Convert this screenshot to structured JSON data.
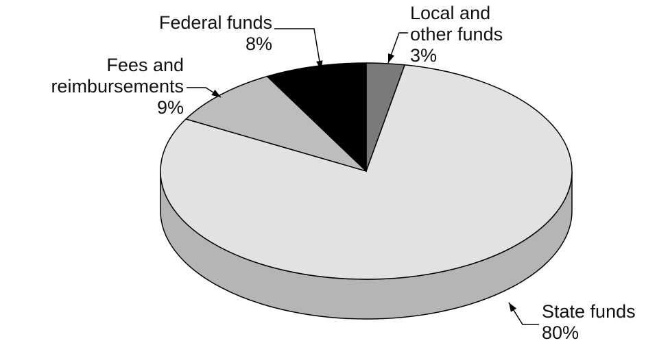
{
  "chart_data": {
    "type": "pie",
    "categories": [
      "Local and other funds",
      "State funds",
      "Fees and reimbursements",
      "Federal funds"
    ],
    "values": [
      3,
      80,
      9,
      8
    ],
    "value_labels": [
      "3%",
      "80%",
      "9%",
      "8%"
    ],
    "colors": [
      "#7a7a7a",
      "#e2e2e2",
      "#bdbdbd",
      "#000000"
    ]
  }
}
